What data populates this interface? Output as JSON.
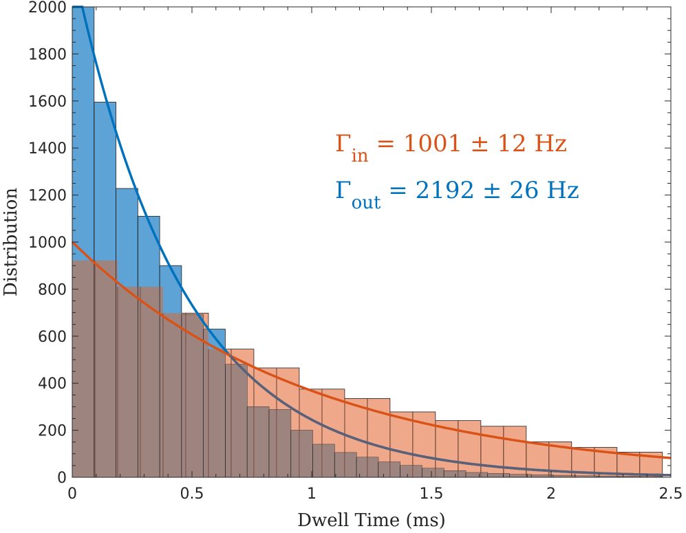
{
  "chart_data": {
    "type": "bar",
    "xlabel": "Dwell Time (ms)",
    "ylabel": "Distribution",
    "xlim": [
      0,
      2.5
    ],
    "ylim": [
      0,
      2000
    ],
    "xticks": [
      "0",
      "0.5",
      "1",
      "1.5",
      "2",
      "2.5"
    ],
    "xtick_values": [
      0,
      0.5,
      1,
      1.5,
      2,
      2.5
    ],
    "yticks": [
      "0",
      "200",
      "400",
      "600",
      "800",
      "1000",
      "1200",
      "1400",
      "1600",
      "1800",
      "2000"
    ],
    "ytick_values": [
      0,
      200,
      400,
      600,
      800,
      1000,
      1200,
      1400,
      1600,
      1800,
      2000
    ],
    "grid": false,
    "series": [
      {
        "color": "#0072BD",
        "fill": "#5DA3D5",
        "bin_edges": [
          0,
          0.0913,
          0.1826,
          0.2739,
          0.3652,
          0.4565,
          0.5478,
          0.6391,
          0.7304,
          0.8217,
          0.913,
          1.0043,
          1.0956,
          1.1869,
          1.2782,
          1.3695,
          1.4608,
          1.5521,
          1.6434,
          1.7347,
          1.826,
          1.9173,
          2.0086,
          2.0999,
          2.1912,
          2.2825,
          2.3738,
          2.4651
        ],
        "values": [
          2000,
          1595,
          1228,
          1110,
          900,
          692,
          630,
          480,
          300,
          288,
          200,
          140,
          105,
          85,
          65,
          50,
          38,
          28,
          20,
          16,
          12,
          10,
          8,
          6,
          5,
          4,
          3
        ],
        "fit": {
          "rate": 2192,
          "amplitude": 2192
        }
      },
      {
        "color": "#D95319",
        "fill": "#EFA98A",
        "bin_edges": [
          0,
          0.0948,
          0.1896,
          0.2844,
          0.3792,
          0.474,
          0.5688,
          0.6636,
          0.7584,
          0.8532,
          0.948,
          1.0428,
          1.1376,
          1.2324,
          1.3272,
          1.422,
          1.5168,
          1.6116,
          1.7064,
          1.8012,
          1.896,
          1.9908,
          2.0856,
          2.1804,
          2.2752,
          2.37,
          2.4648
        ],
        "values": [
          922,
          922,
          810,
          810,
          698,
          698,
          545,
          545,
          465,
          465,
          375,
          375,
          335,
          335,
          278,
          278,
          241,
          241,
          217,
          217,
          151,
          151,
          127,
          127,
          107,
          107
        ],
        "fit": {
          "rate": 1001,
          "amplitude": 1001
        }
      }
    ],
    "overlap_fill": "#9E847F",
    "annotations": [
      {
        "symbol": "Γ",
        "subscript": "in",
        "text": " = 1001 ± 12 Hz",
        "color": "#D95319"
      },
      {
        "symbol": "Γ",
        "subscript": "out",
        "text": " = 2192 ± 26 Hz",
        "color": "#0072BD"
      }
    ]
  }
}
